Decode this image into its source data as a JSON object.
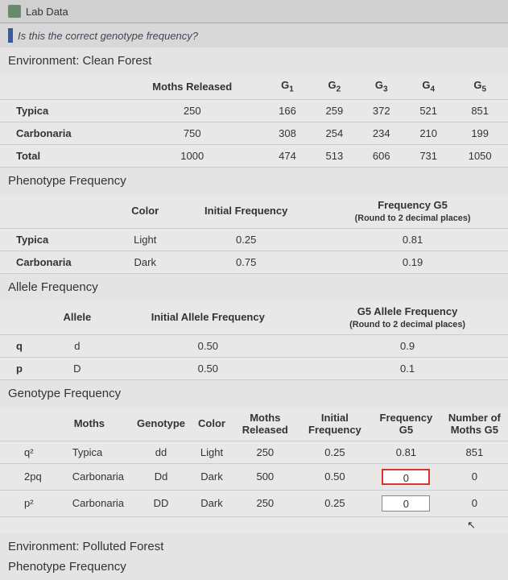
{
  "header": {
    "title": "Lab Data"
  },
  "question": "Is this the correct genotype frequency?",
  "env1_title": "Environment: Clean Forest",
  "moths_released": {
    "col_label": "Moths Released",
    "g_labels": [
      "G1",
      "G2",
      "G3",
      "G4",
      "G5"
    ],
    "rows": [
      {
        "name": "Typica",
        "released": "250",
        "g": [
          "166",
          "259",
          "372",
          "521",
          "851"
        ]
      },
      {
        "name": "Carbonaria",
        "released": "750",
        "g": [
          "308",
          "254",
          "234",
          "210",
          "199"
        ]
      },
      {
        "name": "Total",
        "released": "1000",
        "g": [
          "474",
          "513",
          "606",
          "731",
          "1050"
        ]
      }
    ]
  },
  "pheno_title": "Phenotype Frequency",
  "pheno": {
    "cols": [
      "Color",
      "Initial Frequency",
      "Frequency G5",
      "(Round to 2 decimal places)"
    ],
    "rows": [
      {
        "name": "Typica",
        "color": "Light",
        "init": "0.25",
        "g5": "0.81"
      },
      {
        "name": "Carbonaria",
        "color": "Dark",
        "init": "0.75",
        "g5": "0.19"
      }
    ]
  },
  "allele_title": "Allele Frequency",
  "allele": {
    "cols": [
      "Allele",
      "Initial Allele Frequency",
      "G5 Allele Frequency",
      "(Round to 2 decimal places)"
    ],
    "rows": [
      {
        "sym": "q",
        "allele": "d",
        "init": "0.50",
        "g5": "0.9"
      },
      {
        "sym": "p",
        "allele": "D",
        "init": "0.50",
        "g5": "0.1"
      }
    ]
  },
  "geno_title": "Genotype Frequency",
  "geno": {
    "cols": [
      "Moths",
      "Genotype",
      "Color",
      "Moths Released",
      "Initial Frequency",
      "Frequency G5",
      "Number of Moths G5"
    ],
    "rows": [
      {
        "sym": "q²",
        "moth": "Typica",
        "geno": "dd",
        "color": "Light",
        "rel": "250",
        "init": "0.25",
        "fg5": "0.81",
        "num": "851",
        "err": false
      },
      {
        "sym": "2pq",
        "moth": "Carbonaria",
        "geno": "Dd",
        "color": "Dark",
        "rel": "500",
        "init": "0.50",
        "fg5": "0",
        "num": "0",
        "err": true
      },
      {
        "sym": "p²",
        "moth": "Carbonaria",
        "geno": "DD",
        "color": "Dark",
        "rel": "250",
        "init": "0.25",
        "fg5": "0",
        "num": "0",
        "err": false
      }
    ]
  },
  "env2_title": "Environment: Polluted Forest",
  "pheno2_title": "Phenotype Frequency",
  "colors": {
    "bg": "#e8e8e8",
    "border": "#ccc",
    "text": "#333",
    "accent": "#3a5a9a",
    "error": "#d33"
  }
}
